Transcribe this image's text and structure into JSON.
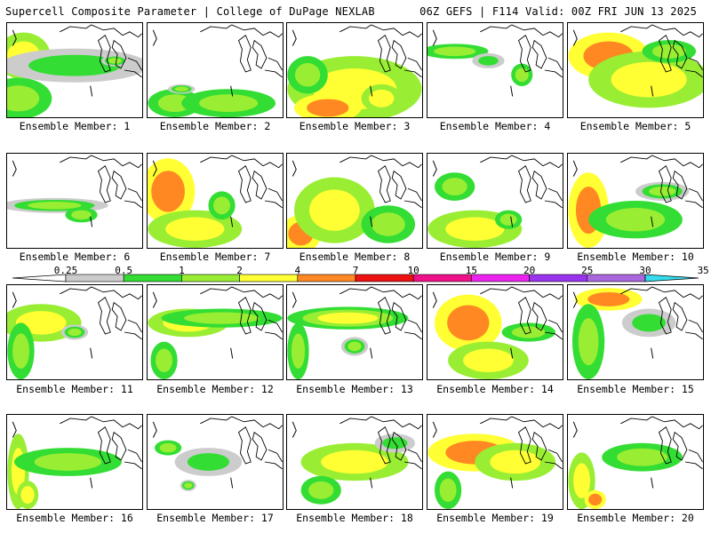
{
  "header": {
    "title_left": "Supercell Composite Parameter | College of DuPage NEXLAB",
    "title_right": "06Z GEFS | F114 Valid: 00Z FRI JUN 13 2025"
  },
  "colors": {
    "c1": "#cccccc",
    "c2": "#33dd33",
    "c3": "#99ee33",
    "c4": "#ffff33",
    "c5": "#ff8822",
    "c6": "#ee1111",
    "c7": "#ee1188",
    "c8": "#ee22ee",
    "c9": "#9933ee",
    "c10": "#aa66dd",
    "c11": "#33ddee"
  },
  "legend": {
    "ticks": [
      "0.25",
      "0.5",
      "1",
      "2",
      "4",
      "7",
      "10",
      "15",
      "20",
      "25",
      "30",
      "35"
    ],
    "color_keys": [
      "c1",
      "c2",
      "c3",
      "c4",
      "c5",
      "c6",
      "c7",
      "c8",
      "c9",
      "c10",
      "c11"
    ]
  },
  "members": [
    {
      "label": "Ensemble Member: 1",
      "blobs": [
        [
          0.12,
          0.35,
          0.2,
          0.25,
          3,
          2
        ],
        [
          0.08,
          0.8,
          0.25,
          0.22,
          2,
          1
        ],
        [
          0.5,
          0.45,
          0.55,
          0.18,
          1,
          0
        ],
        [
          0.8,
          0.4,
          0.1,
          0.06,
          2,
          0
        ]
      ]
    },
    {
      "label": "Ensemble Member: 2",
      "blobs": [
        [
          0.2,
          0.85,
          0.2,
          0.15,
          2,
          1
        ],
        [
          0.6,
          0.85,
          0.35,
          0.15,
          2,
          1
        ],
        [
          0.25,
          0.7,
          0.1,
          0.05,
          2,
          0
        ]
      ]
    },
    {
      "label": "Ensemble Member: 3",
      "blobs": [
        [
          0.5,
          0.7,
          0.5,
          0.35,
          3,
          2
        ],
        [
          0.3,
          0.9,
          0.25,
          0.15,
          4,
          3
        ],
        [
          0.7,
          0.8,
          0.15,
          0.15,
          3,
          2
        ],
        [
          0.15,
          0.55,
          0.15,
          0.2,
          2,
          1
        ]
      ]
    },
    {
      "label": "Ensemble Member: 4",
      "blobs": [
        [
          0.2,
          0.3,
          0.25,
          0.08,
          2,
          1
        ],
        [
          0.7,
          0.55,
          0.08,
          0.12,
          2,
          1
        ],
        [
          0.45,
          0.4,
          0.12,
          0.08,
          1,
          0
        ]
      ]
    },
    {
      "label": "Ensemble Member: 5",
      "blobs": [
        [
          0.3,
          0.35,
          0.3,
          0.25,
          4,
          3
        ],
        [
          0.6,
          0.6,
          0.45,
          0.3,
          3,
          2
        ],
        [
          0.75,
          0.3,
          0.2,
          0.12,
          2,
          1
        ]
      ]
    },
    {
      "label": "Ensemble Member: 6",
      "blobs": [
        [
          0.35,
          0.55,
          0.4,
          0.08,
          2,
          0
        ],
        [
          0.55,
          0.65,
          0.12,
          0.08,
          2,
          1
        ]
      ]
    },
    {
      "label": "Ensemble Member: 7",
      "blobs": [
        [
          0.15,
          0.4,
          0.2,
          0.35,
          4,
          3
        ],
        [
          0.35,
          0.8,
          0.35,
          0.2,
          3,
          2
        ],
        [
          0.55,
          0.55,
          0.1,
          0.15,
          2,
          1
        ]
      ]
    },
    {
      "label": "Ensemble Member: 8",
      "blobs": [
        [
          0.1,
          0.85,
          0.15,
          0.2,
          4,
          3
        ],
        [
          0.35,
          0.6,
          0.3,
          0.35,
          3,
          2
        ],
        [
          0.75,
          0.75,
          0.2,
          0.2,
          2,
          1
        ]
      ]
    },
    {
      "label": "Ensemble Member: 9",
      "blobs": [
        [
          0.35,
          0.8,
          0.35,
          0.2,
          3,
          2
        ],
        [
          0.2,
          0.35,
          0.15,
          0.15,
          2,
          1
        ],
        [
          0.6,
          0.7,
          0.1,
          0.1,
          2,
          1
        ]
      ]
    },
    {
      "label": "Ensemble Member: 10",
      "blobs": [
        [
          0.15,
          0.6,
          0.15,
          0.4,
          4,
          3
        ],
        [
          0.5,
          0.7,
          0.35,
          0.2,
          2,
          1
        ],
        [
          0.7,
          0.4,
          0.2,
          0.1,
          2,
          0
        ]
      ]
    },
    {
      "label": "Ensemble Member: 11",
      "blobs": [
        [
          0.25,
          0.4,
          0.3,
          0.2,
          3,
          2
        ],
        [
          0.1,
          0.7,
          0.1,
          0.3,
          2,
          1
        ],
        [
          0.5,
          0.5,
          0.1,
          0.08,
          2,
          0
        ]
      ]
    },
    {
      "label": "Ensemble Member: 12",
      "blobs": [
        [
          0.3,
          0.4,
          0.3,
          0.15,
          3,
          2
        ],
        [
          0.55,
          0.35,
          0.45,
          0.1,
          2,
          1
        ],
        [
          0.12,
          0.8,
          0.1,
          0.2,
          2,
          1
        ]
      ]
    },
    {
      "label": "Ensemble Member: 13",
      "blobs": [
        [
          0.45,
          0.35,
          0.45,
          0.12,
          3,
          1
        ],
        [
          0.08,
          0.7,
          0.08,
          0.3,
          2,
          1
        ],
        [
          0.5,
          0.65,
          0.1,
          0.1,
          2,
          0
        ]
      ]
    },
    {
      "label": "Ensemble Member: 14",
      "blobs": [
        [
          0.3,
          0.4,
          0.25,
          0.3,
          4,
          3
        ],
        [
          0.45,
          0.8,
          0.3,
          0.2,
          3,
          2
        ],
        [
          0.75,
          0.5,
          0.2,
          0.1,
          2,
          1
        ]
      ]
    },
    {
      "label": "Ensemble Member: 15",
      "blobs": [
        [
          0.3,
          0.15,
          0.25,
          0.12,
          4,
          3
        ],
        [
          0.15,
          0.6,
          0.12,
          0.4,
          2,
          1
        ],
        [
          0.6,
          0.4,
          0.2,
          0.15,
          1,
          0
        ]
      ]
    },
    {
      "label": "Ensemble Member: 16",
      "blobs": [
        [
          0.08,
          0.6,
          0.08,
          0.4,
          3,
          2
        ],
        [
          0.45,
          0.5,
          0.4,
          0.15,
          2,
          1
        ],
        [
          0.15,
          0.85,
          0.08,
          0.15,
          3,
          2
        ]
      ]
    },
    {
      "label": "Ensemble Member: 17",
      "blobs": [
        [
          0.15,
          0.35,
          0.1,
          0.08,
          2,
          1
        ],
        [
          0.45,
          0.5,
          0.25,
          0.15,
          1,
          0
        ],
        [
          0.3,
          0.75,
          0.06,
          0.06,
          2,
          0
        ]
      ]
    },
    {
      "label": "Ensemble Member: 18",
      "blobs": [
        [
          0.5,
          0.5,
          0.4,
          0.2,
          3,
          2
        ],
        [
          0.25,
          0.8,
          0.15,
          0.15,
          2,
          1
        ],
        [
          0.8,
          0.3,
          0.15,
          0.1,
          1,
          0
        ]
      ]
    },
    {
      "label": "Ensemble Member: 19",
      "blobs": [
        [
          0.35,
          0.4,
          0.35,
          0.2,
          4,
          3
        ],
        [
          0.65,
          0.5,
          0.3,
          0.2,
          3,
          2
        ],
        [
          0.15,
          0.8,
          0.1,
          0.2,
          2,
          1
        ]
      ]
    },
    {
      "label": "Ensemble Member: 20",
      "blobs": [
        [
          0.1,
          0.7,
          0.1,
          0.3,
          3,
          2
        ],
        [
          0.55,
          0.45,
          0.3,
          0.15,
          2,
          1
        ],
        [
          0.2,
          0.9,
          0.08,
          0.1,
          4,
          3
        ]
      ]
    }
  ]
}
